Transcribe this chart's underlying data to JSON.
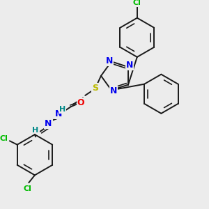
{
  "bg_color": "#ececec",
  "bond_color": "#1a1a1a",
  "bond_width": 1.4,
  "atom_colors": {
    "N": "#0000ee",
    "S": "#bbbb00",
    "O": "#ee0000",
    "Cl": "#00bb00",
    "C": "#1a1a1a",
    "H": "#008888"
  },
  "font_size": 8.0
}
